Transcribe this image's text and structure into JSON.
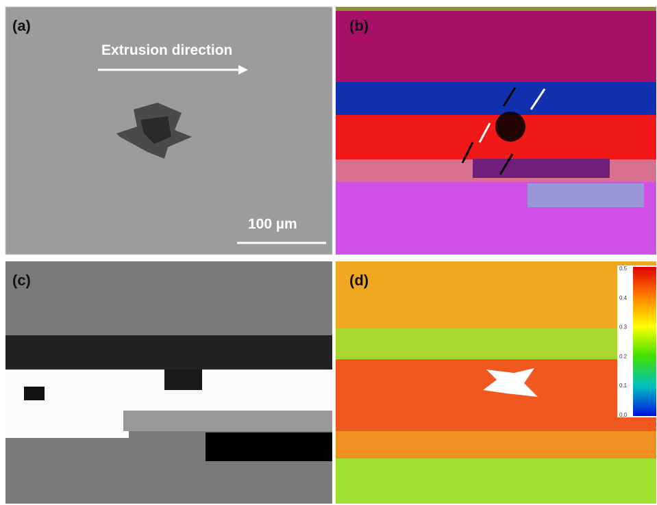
{
  "panels": {
    "a": {
      "label": "(a)",
      "arrow_text": "Extrusion direction",
      "scale_bar": "100 µm"
    },
    "b": {
      "label": "(b)"
    },
    "c": {
      "label": "(c)"
    },
    "d": {
      "label": "(d)",
      "colorbar_ticks": [
        "0.0",
        "0.1",
        "0.2",
        "0.3",
        "0.4",
        "0.5"
      ]
    }
  }
}
